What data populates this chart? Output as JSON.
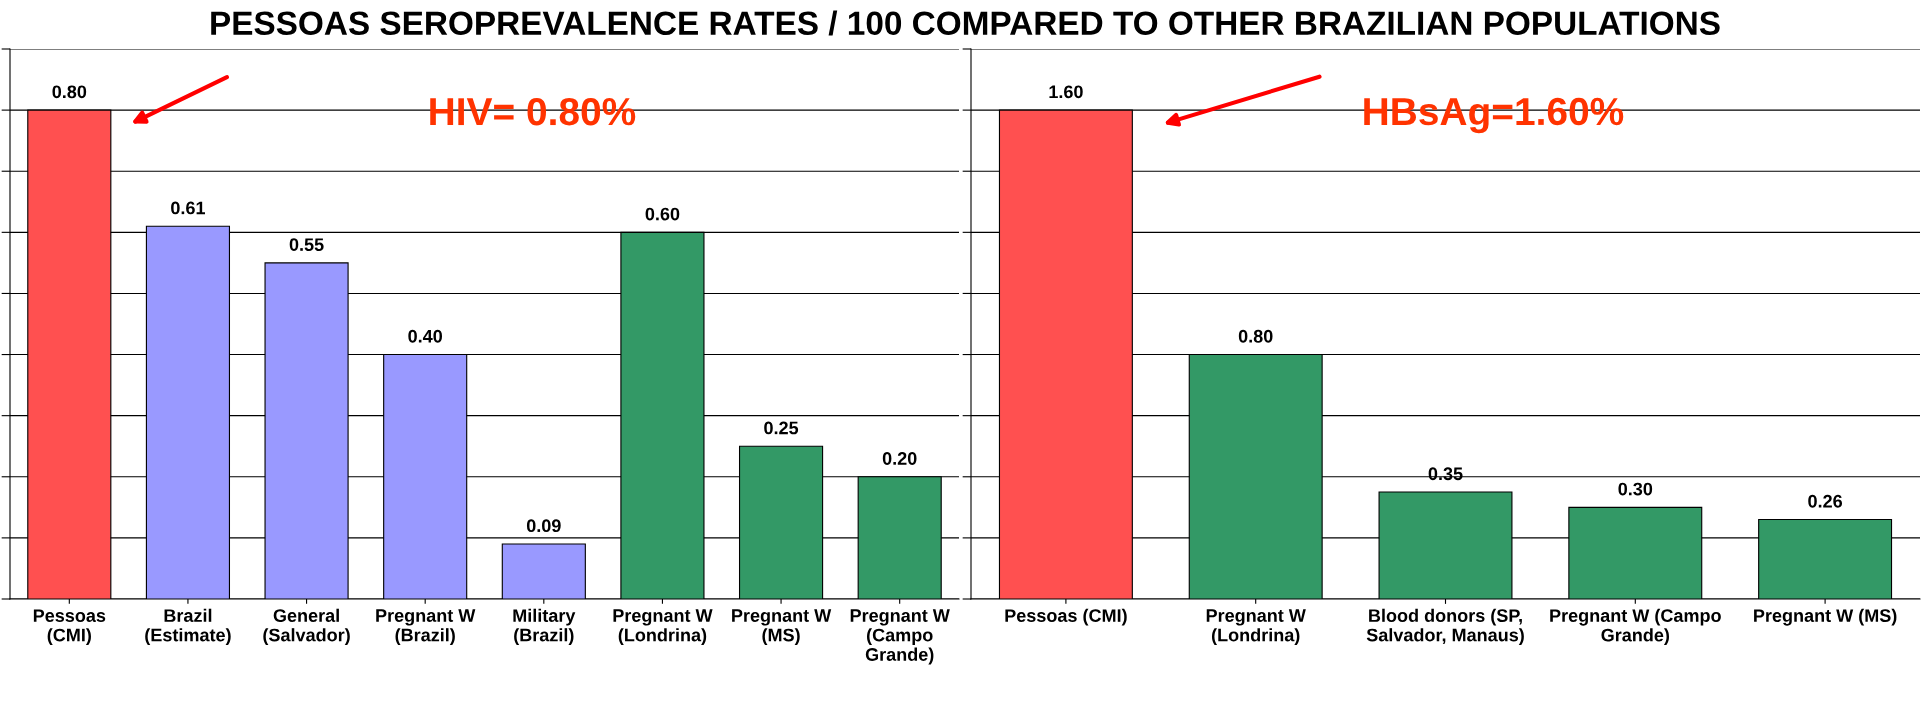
{
  "chart_data": [
    {
      "type": "bar",
      "title": "PESSOAS SEROPREVALENCE RATES / 100 COMPARED TO OTHER BRAZILIAN POPULATIONS",
      "categories": [
        "Pessoas\n(CMI)",
        "Brazil\n(Estimate)",
        "General\n(Salvador)",
        "Pregnant W\n(Brazil)",
        "Military\n(Brazil)",
        "Pregnant W\n(Londrina)",
        "Pregnant W\n(MS)",
        "Pregnant W\n(Campo\nGrande)"
      ],
      "values": [
        0.8,
        0.61,
        0.55,
        0.4,
        0.09,
        0.6,
        0.25,
        0.2
      ],
      "colors": [
        "#ff5050",
        "#9999ff",
        "#9999ff",
        "#9999ff",
        "#9999ff",
        "#339966",
        "#339966",
        "#339966"
      ],
      "ylim": [
        0,
        0.9
      ],
      "yticks": [
        {
          "value": 0,
          "label": null
        },
        {
          "value": 0.1,
          "label": null
        },
        {
          "value": 0.2,
          "label": null
        },
        {
          "value": 0.3,
          "label": null
        },
        {
          "value": 0.4,
          "label": null
        },
        {
          "value": 0.5,
          "label": null
        },
        {
          "value": 0.6,
          "label": null
        },
        {
          "value": 0.7,
          "label": null
        },
        {
          "value": 0.8,
          "label": null
        },
        {
          "value": 0.9,
          "label": null
        }
      ],
      "value_labels": [
        "0.80",
        "0.61",
        "0.55",
        "0.40",
        "0.09",
        "0.60",
        "0.25",
        "0.20"
      ],
      "annotations": [
        "HIV= 0.80%"
      ],
      "grid": "y",
      "tick_labels": "x",
      "legend": false
    },
    {
      "type": "bar",
      "categories": [
        "Pessoas (CMI)",
        "Pregnant W\n(Londrina)",
        "Blood donors (SP,\nSalvador, Manaus)",
        "Pregnant W (Campo\nGrande)",
        "Pregnant W (MS)"
      ],
      "values": [
        1.6,
        0.8,
        0.35,
        0.3,
        0.26
      ],
      "colors": [
        "#ff5050",
        "#339966",
        "#339966",
        "#339966",
        "#339966"
      ],
      "ylim": [
        0,
        1.8
      ],
      "yticks": [
        {
          "value": 0,
          "label": null
        },
        {
          "value": 0.2,
          "label": null
        },
        {
          "value": 0.4,
          "label": null
        },
        {
          "value": 0.6,
          "label": null
        },
        {
          "value": 0.8,
          "label": null
        },
        {
          "value": 1.0,
          "label": null
        },
        {
          "value": 1.2,
          "label": null
        },
        {
          "value": 1.4,
          "label": null
        },
        {
          "value": 1.6,
          "label": null
        },
        {
          "value": 1.8,
          "label": null
        }
      ],
      "value_labels": [
        "1.60",
        "0.80",
        "0.35",
        "0.30",
        "0.26"
      ],
      "annotations": [
        "HBsAg=1.60%"
      ],
      "grid": "y",
      "tick_labels": "x",
      "legend": false
    }
  ]
}
